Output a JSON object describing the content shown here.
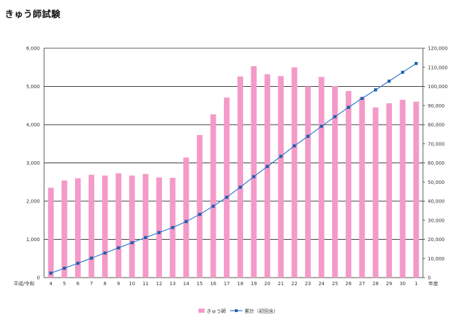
{
  "page": {
    "title": "きゅう師試験"
  },
  "chart_data": {
    "type": "bar",
    "title": "",
    "x_prefix_label": "平成/令和",
    "x_suffix_label": "年度",
    "categories": [
      "4",
      "5",
      "6",
      "7",
      "8",
      "9",
      "10",
      "11",
      "12",
      "13",
      "14",
      "15",
      "16",
      "17",
      "18",
      "19",
      "20",
      "21",
      "22",
      "23",
      "24",
      "25",
      "26",
      "27",
      "28",
      "29",
      "30",
      "1"
    ],
    "y_left": {
      "lim": [
        0,
        6000
      ],
      "ticks": [
        "0",
        "1,000",
        "2,000",
        "3,000",
        "4,000",
        "5,000",
        "6,000"
      ],
      "tick_values": [
        0,
        1000,
        2000,
        3000,
        4000,
        5000,
        6000
      ]
    },
    "y_right": {
      "lim": [
        0,
        120000
      ],
      "ticks": [
        "0",
        "10,000",
        "20,000",
        "30,000",
        "40,000",
        "50,000",
        "60,000",
        "70,000",
        "80,000",
        "90,000",
        "100,000",
        "110,000",
        "120,000"
      ],
      "tick_values": [
        0,
        10000,
        20000,
        30000,
        40000,
        50000,
        60000,
        70000,
        80000,
        90000,
        100000,
        110000,
        120000
      ]
    },
    "grid": true,
    "legend_position": "bottom-center",
    "series": [
      {
        "name": "きゅう師",
        "type": "bar",
        "axis": "left",
        "color": "#f49ac8",
        "values": [
          2350,
          2540,
          2600,
          2690,
          2670,
          2730,
          2670,
          2710,
          2620,
          2610,
          3140,
          3730,
          4270,
          4710,
          5260,
          5530,
          5320,
          5270,
          5500,
          5000,
          5250,
          5010,
          4880,
          4700,
          4450,
          4560,
          4650,
          4600
        ]
      },
      {
        "name": "累計（初回含）",
        "type": "line",
        "axis": "right",
        "color": "#2f7bd1",
        "marker_color": "#1f5fa8",
        "values": [
          2350,
          4890,
          7490,
          10180,
          12850,
          15580,
          18250,
          20960,
          23580,
          26190,
          29330,
          33060,
          37330,
          42040,
          47300,
          52830,
          58150,
          63420,
          68920,
          73920,
          79170,
          84180,
          89060,
          93760,
          98210,
          102770,
          107420,
          112020
        ]
      }
    ]
  }
}
